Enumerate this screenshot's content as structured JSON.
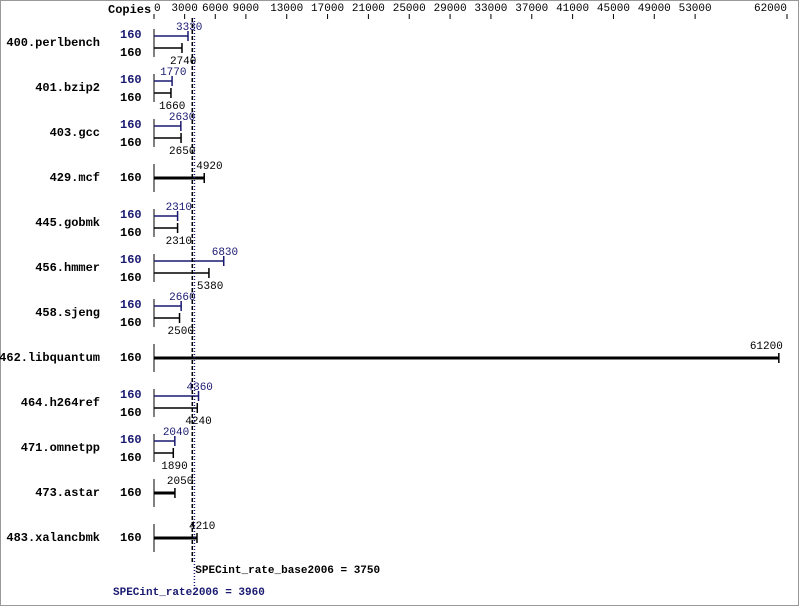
{
  "chart_data": {
    "type": "bar",
    "orientation": "horizontal",
    "copies_header": "Copies",
    "categories": [
      "400.perlbench",
      "401.bzip2",
      "403.gcc",
      "429.mcf",
      "445.gobmk",
      "456.hmmer",
      "458.sjeng",
      "462.libquantum",
      "464.h264ref",
      "471.omnetpp",
      "473.astar",
      "483.xalancbmk"
    ],
    "series": [
      {
        "color": "#191970",
        "values": [
          3330,
          1770,
          2630,
          null,
          2310,
          6830,
          2660,
          null,
          4360,
          2040,
          null,
          null
        ],
        "copies": [
          160,
          160,
          160,
          null,
          160,
          160,
          160,
          null,
          160,
          160,
          null,
          null
        ]
      },
      {
        "color": "#000000",
        "values": [
          2740,
          1660,
          2650,
          4920,
          2310,
          5380,
          2500,
          61200,
          4240,
          1890,
          2050,
          4210
        ],
        "copies": [
          160,
          160,
          160,
          160,
          160,
          160,
          160,
          160,
          160,
          160,
          160,
          160
        ]
      }
    ],
    "xlim": [
      0,
      62000
    ],
    "xticks": [
      0,
      3000,
      6000,
      9000,
      13000,
      17000,
      21000,
      25000,
      29000,
      33000,
      37000,
      41000,
      45000,
      49000,
      53000,
      62000
    ],
    "means": [
      {
        "label": "SPECint_rate_base2006 = 3750",
        "value": 3750,
        "color": "#000000"
      },
      {
        "label": "SPECint_rate2006 = 3960",
        "value": 3960,
        "color": "#191970"
      }
    ]
  }
}
